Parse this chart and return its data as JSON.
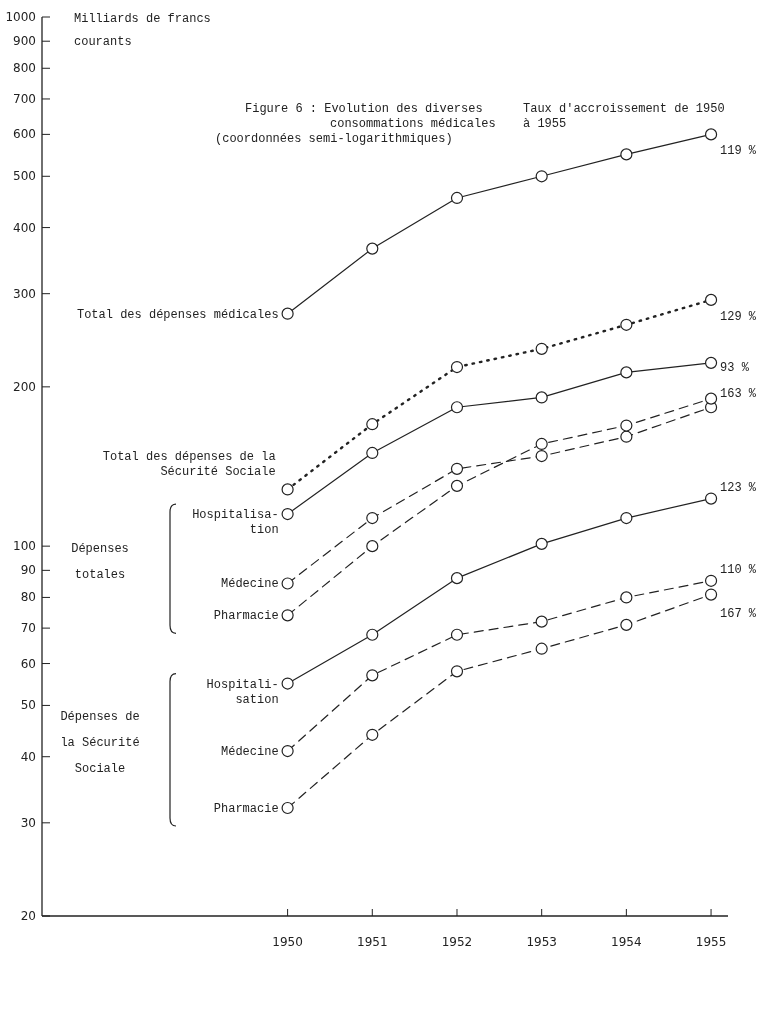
{
  "chart_data": {
    "type": "line",
    "title": "Figure 6 : Evolution des diverses consommations médicales",
    "subtitle": "(coordonnées semi-logarithmiques)",
    "ylabel": "Milliards de francs courants",
    "x": [
      1950,
      1951,
      1952,
      1953,
      1954,
      1955
    ],
    "xlim": [
      1947.1,
      1955.2
    ],
    "xticks": [
      1950,
      1951,
      1952,
      1953,
      1954,
      1955
    ],
    "ylim": [
      20,
      1000
    ],
    "yticks": [
      20,
      30,
      40,
      50,
      60,
      70,
      80,
      90,
      100,
      200,
      300,
      400,
      500,
      600,
      700,
      800,
      900,
      1000
    ],
    "log": true,
    "marker": "circle",
    "series": [
      {
        "name": "Total des dépenses médicales",
        "color": "#222222",
        "line_style": "solid",
        "values": [
          275,
          365,
          455,
          500,
          550,
          600
        ]
      },
      {
        "name": "Total des dépenses de la Sécurité Sociale",
        "color": "#222222",
        "line_style": "dotted",
        "values": [
          128,
          170,
          218,
          236,
          262,
          292
        ]
      },
      {
        "name": "Hospitalisa-tion",
        "color": "#222222",
        "line_style": "solid",
        "values": [
          115,
          150,
          183,
          191,
          213,
          222
        ]
      },
      {
        "name": "Médecine",
        "color": "#222222",
        "line_style": "dashed",
        "values": [
          85,
          113,
          140,
          148,
          161,
          183
        ]
      },
      {
        "name": "Pharmacie",
        "color": "#222222",
        "line_style": "dashed",
        "values": [
          74,
          100,
          130,
          156,
          169,
          190
        ]
      },
      {
        "name": "Hospitali-sation",
        "color": "#222222",
        "line_style": "solid",
        "values": [
          55,
          68,
          87,
          101,
          113,
          123
        ]
      },
      {
        "name": "Médecine",
        "color": "#222222",
        "line_style": "dashed",
        "values": [
          41,
          57,
          68,
          72,
          80,
          86
        ]
      },
      {
        "name": "Pharmacie",
        "color": "#222222",
        "line_style": "dashed",
        "values": [
          32,
          44,
          58,
          64,
          71,
          81
        ]
      }
    ],
    "annotations": [
      "Taux d'accroissement de 1950 à 1955",
      "Dépenses totales",
      "Dépenses de la Sécurité Sociale",
      "119 %",
      "129 %",
      "93 %",
      "163 %",
      "123 %",
      "110 %",
      "167 %"
    ]
  }
}
